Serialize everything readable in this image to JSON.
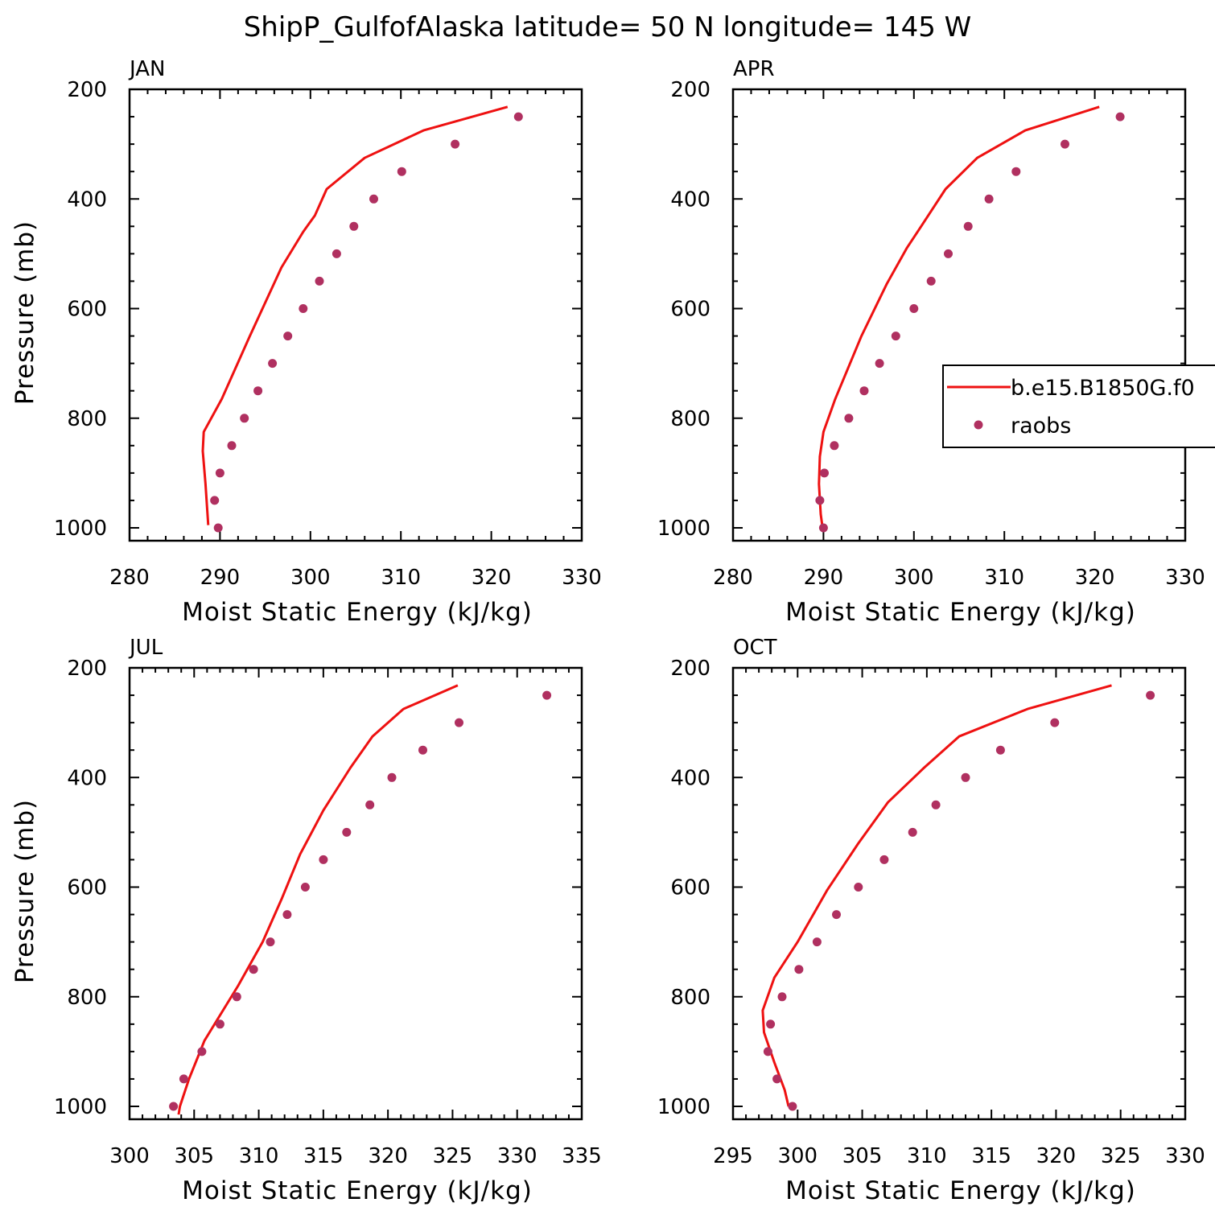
{
  "figure": {
    "title": "ShipP_GulfofAlaska  latitude= 50 N longitude= 145 W"
  },
  "legend": {
    "placement": "right-middle of APR panel",
    "model_label": "b.e15.B1850G.f0",
    "obs_label": "raobs"
  },
  "colors": {
    "model_line": "#ee1111",
    "obs_marker": "#b03060",
    "axes": "#000000"
  },
  "chart_data": [
    {
      "type": "line",
      "panel": "JAN",
      "title": "JAN",
      "xlabel": "Moist Static Energy (kJ/kg)",
      "ylabel": "Pressure (mb)",
      "xlim": [
        280,
        330
      ],
      "xticks": [
        280,
        290,
        300,
        310,
        320,
        330
      ],
      "ylim": [
        200,
        1025
      ],
      "yticks": [
        200,
        400,
        600,
        800,
        1000
      ],
      "series": [
        {
          "name": "b.e15.B1850G.f0",
          "style": "line",
          "x": [
            321.8,
            312.5,
            306.0,
            301.8,
            300.5,
            299.2,
            296.8,
            293.3,
            290.2,
            288.2,
            288.1,
            288.4,
            288.7
          ],
          "y": [
            232,
            275,
            325,
            382,
            430,
            460,
            525,
            650,
            765,
            825,
            860,
            920,
            995
          ]
        },
        {
          "name": "raobs",
          "style": "markers",
          "x": [
            323.0,
            316.0,
            310.1,
            307.0,
            304.8,
            302.9,
            301.0,
            299.2,
            297.5,
            295.8,
            294.2,
            292.7,
            291.3,
            290.0,
            289.4,
            289.8
          ],
          "y": [
            250,
            300,
            350,
            400,
            450,
            500,
            550,
            600,
            650,
            700,
            750,
            800,
            850,
            900,
            950,
            1000
          ]
        }
      ]
    },
    {
      "type": "line",
      "panel": "APR",
      "title": "APR",
      "xlabel": "Moist Static Energy (kJ/kg)",
      "ylabel": "",
      "xlim": [
        280,
        330
      ],
      "xticks": [
        280,
        290,
        300,
        310,
        320,
        330
      ],
      "ylim": [
        200,
        1025
      ],
      "yticks": [
        200,
        400,
        600,
        800,
        1000
      ],
      "series": [
        {
          "name": "b.e15.B1850G.f0",
          "style": "line",
          "x": [
            320.5,
            312.3,
            307.0,
            303.5,
            300.8,
            299.2,
            297.0,
            294.2,
            291.3,
            290.0,
            289.6,
            289.5,
            289.7,
            289.9
          ],
          "y": [
            232,
            275,
            325,
            382,
            450,
            490,
            555,
            650,
            765,
            825,
            870,
            920,
            975,
            1000
          ]
        },
        {
          "name": "raobs",
          "style": "markers",
          "x": [
            322.8,
            316.7,
            311.3,
            308.3,
            306.0,
            303.8,
            301.9,
            300.0,
            298.0,
            296.2,
            294.5,
            292.8,
            291.2,
            290.1,
            289.6,
            290.0
          ],
          "y": [
            250,
            300,
            350,
            400,
            450,
            500,
            550,
            600,
            650,
            700,
            750,
            800,
            850,
            900,
            950,
            1000
          ]
        }
      ]
    },
    {
      "type": "line",
      "panel": "JUL",
      "title": "JUL",
      "xlabel": "Moist Static Energy (kJ/kg)",
      "ylabel": "Pressure (mb)",
      "xlim": [
        300,
        335
      ],
      "xticks": [
        300,
        305,
        310,
        315,
        320,
        325,
        330,
        335
      ],
      "ylim": [
        200,
        1025
      ],
      "yticks": [
        200,
        400,
        600,
        800,
        1000
      ],
      "series": [
        {
          "name": "b.e15.B1850G.f0",
          "style": "line",
          "x": [
            325.4,
            321.2,
            318.8,
            317.1,
            315.0,
            313.2,
            311.8,
            310.3,
            308.4,
            305.8,
            304.6,
            303.9,
            303.8
          ],
          "y": [
            232,
            275,
            325,
            382,
            460,
            540,
            620,
            700,
            780,
            880,
            950,
            1000,
            1015
          ]
        },
        {
          "name": "raobs",
          "style": "markers",
          "x": [
            332.3,
            325.5,
            322.7,
            320.3,
            318.6,
            316.8,
            315.0,
            313.6,
            312.2,
            310.9,
            309.6,
            308.3,
            307.0,
            305.6,
            304.2,
            303.4
          ],
          "y": [
            250,
            300,
            350,
            400,
            450,
            500,
            550,
            600,
            650,
            700,
            750,
            800,
            850,
            900,
            950,
            1000
          ]
        }
      ]
    },
    {
      "type": "line",
      "panel": "OCT",
      "title": "OCT",
      "xlabel": "Moist Static Energy (kJ/kg)",
      "ylabel": "",
      "xlim": [
        295,
        330
      ],
      "xticks": [
        295,
        300,
        305,
        310,
        315,
        320,
        325,
        330
      ],
      "ylim": [
        200,
        1025
      ],
      "yticks": [
        200,
        400,
        600,
        800,
        1000
      ],
      "series": [
        {
          "name": "b.e15.B1850G.f0",
          "style": "line",
          "x": [
            324.3,
            317.8,
            312.5,
            309.8,
            307.0,
            304.7,
            302.3,
            300.0,
            298.2,
            297.3,
            297.4,
            298.2,
            299.0,
            299.3
          ],
          "y": [
            232,
            275,
            325,
            382,
            445,
            520,
            605,
            700,
            765,
            825,
            865,
            920,
            970,
            1000
          ]
        },
        {
          "name": "raobs",
          "style": "markers",
          "x": [
            327.3,
            319.9,
            315.7,
            313.0,
            310.7,
            308.9,
            306.7,
            304.7,
            303.0,
            301.5,
            300.1,
            298.8,
            297.9,
            297.7,
            298.4,
            299.6
          ],
          "y": [
            250,
            300,
            350,
            400,
            450,
            500,
            550,
            600,
            650,
            700,
            750,
            800,
            850,
            900,
            950,
            1000
          ]
        }
      ]
    }
  ]
}
